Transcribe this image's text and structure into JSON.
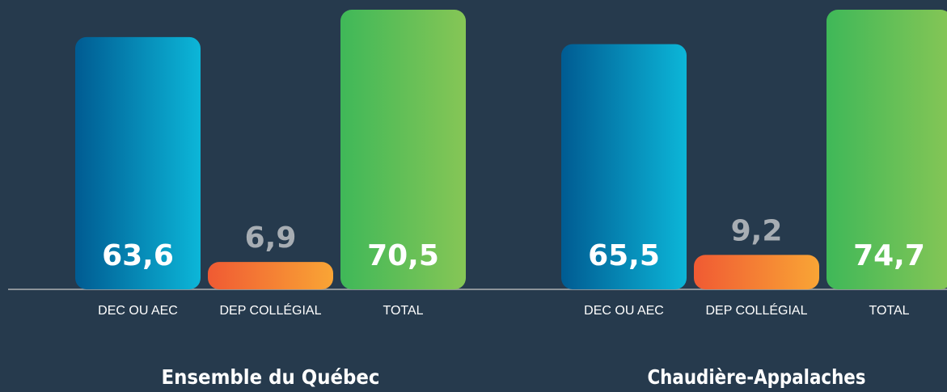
{
  "chart_data": [
    {
      "type": "bar",
      "title": "Ensemble du Québec",
      "categories": [
        "DEC OU AEC",
        "DEP COLLÉGIAL",
        "TOTAL"
      ],
      "values": [
        63.6,
        6.9,
        70.5
      ],
      "value_labels": [
        "63,6",
        "6,9",
        "70,5"
      ],
      "colors": [
        [
          "#005b92",
          "#0cb6d8"
        ],
        [
          "#f05a33",
          "#f9a535"
        ],
        [
          "#3fb858",
          "#86c656"
        ]
      ]
    },
    {
      "type": "bar",
      "title": "Chaudière-Appalaches",
      "categories": [
        "DEC OU AEC",
        "DEP COLLÉGIAL",
        "TOTAL"
      ],
      "values": [
        65.5,
        9.2,
        74.7
      ],
      "value_labels": [
        "65,5",
        "9,2",
        "74,7"
      ],
      "colors": [
        [
          "#005b92",
          "#0cb6d8"
        ],
        [
          "#f05a33",
          "#f9a535"
        ],
        [
          "#3fb858",
          "#86c656"
        ]
      ]
    }
  ]
}
